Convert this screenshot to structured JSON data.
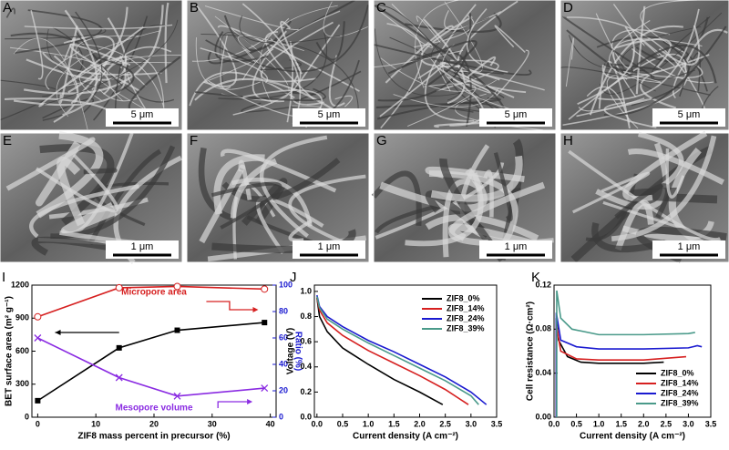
{
  "panels": [
    {
      "letter": "A",
      "scale_bar": "5 μm"
    },
    {
      "letter": "B",
      "scale_bar": "5 μm"
    },
    {
      "letter": "C",
      "scale_bar": "5 μm"
    },
    {
      "letter": "D",
      "scale_bar": "5 μm"
    },
    {
      "letter": "E",
      "scale_bar": "1 μm"
    },
    {
      "letter": "F",
      "scale_bar": "1 μm"
    },
    {
      "letter": "G",
      "scale_bar": "1 μm"
    },
    {
      "letter": "H",
      "scale_bar": "1 μm"
    }
  ],
  "chart_data": [
    {
      "type": "line",
      "panel": "I",
      "xlabel": "ZIF8 mass percent in precursor (%)",
      "ylabel": "BET surface area (m² g⁻¹)",
      "y2label": "Ratio (%)",
      "y2_color": "#1a1ad0",
      "annotations": [
        "Micropore area",
        "Mesopore volume"
      ],
      "x": [
        0,
        14,
        24,
        39
      ],
      "xlim": [
        -1,
        41
      ],
      "xticks": [
        0,
        10,
        20,
        30,
        40
      ],
      "ylim": [
        0,
        1200
      ],
      "yticks": [
        0,
        300,
        600,
        900,
        1200
      ],
      "y2lim": [
        0,
        100
      ],
      "y2ticks": [
        0,
        20,
        40,
        60,
        80,
        100
      ],
      "series": [
        {
          "color": "#000000",
          "marker": "square",
          "values": [
            150,
            630,
            790,
            860
          ]
        },
        {
          "color": "#d62020",
          "marker": "circle",
          "axis": "y2",
          "values": [
            76,
            98,
            99,
            97
          ]
        },
        {
          "color": "#8a2be2",
          "marker": "cross",
          "axis": "y2",
          "values": [
            60,
            30,
            16,
            22
          ]
        }
      ]
    },
    {
      "type": "line",
      "panel": "J",
      "xlabel": "Current density (A cm⁻²)",
      "ylabel": "Voltage (V)",
      "legend": "upper right",
      "xlim": [
        -0.05,
        3.5
      ],
      "xticks": [
        {
          "value": 0,
          "label": "0.0"
        },
        0.5,
        {
          "value": 1,
          "label": "1.0"
        },
        1.5,
        {
          "value": 2,
          "label": "2.0"
        },
        2.5,
        {
          "value": 3,
          "label": "3.0"
        },
        3.5
      ],
      "ylim": [
        0,
        1.05
      ],
      "yticks": [
        {
          "value": 0,
          "label": "0.0"
        },
        0.2,
        0.4,
        0.6,
        0.8,
        {
          "value": 1,
          "label": "1.0"
        }
      ],
      "series": [
        {
          "name": "ZIF8_0%",
          "color": "#000000",
          "x": [
            0,
            0.05,
            0.2,
            0.5,
            1,
            1.5,
            2,
            2.45
          ],
          "values": [
            0.95,
            0.8,
            0.68,
            0.55,
            0.42,
            0.3,
            0.2,
            0.1
          ]
        },
        {
          "name": "ZIF8_14%",
          "color": "#d62020",
          "x": [
            0,
            0.05,
            0.2,
            0.5,
            1,
            1.5,
            2,
            2.5,
            2.95
          ],
          "values": [
            0.95,
            0.85,
            0.75,
            0.65,
            0.53,
            0.43,
            0.33,
            0.22,
            0.1
          ]
        },
        {
          "name": "ZIF8_24%",
          "color": "#1a1ad0",
          "x": [
            0,
            0.05,
            0.2,
            0.5,
            1,
            1.5,
            2,
            2.5,
            3,
            3.3
          ],
          "values": [
            0.97,
            0.88,
            0.8,
            0.72,
            0.61,
            0.52,
            0.42,
            0.32,
            0.2,
            0.1
          ]
        },
        {
          "name": "ZIF8_39%",
          "color": "#4a9a8a",
          "x": [
            0,
            0.05,
            0.2,
            0.5,
            1,
            1.5,
            2,
            2.5,
            3,
            3.15
          ],
          "values": [
            0.96,
            0.87,
            0.78,
            0.7,
            0.59,
            0.49,
            0.39,
            0.29,
            0.17,
            0.1
          ]
        }
      ]
    },
    {
      "type": "line",
      "panel": "K",
      "xlabel": "Current density (A cm⁻²)",
      "ylabel": "Cell resistance (Ω·cm²)",
      "legend": "lower right",
      "xlim": [
        0,
        3.5
      ],
      "xticks": [
        {
          "value": 0,
          "label": "0.0"
        },
        0.5,
        {
          "value": 1,
          "label": "1.0"
        },
        1.5,
        {
          "value": 2,
          "label": "2.0"
        },
        2.5,
        {
          "value": 3,
          "label": "3.0"
        },
        3.5
      ],
      "ylim": [
        0,
        0.12
      ],
      "yticks": [
        {
          "value": 0,
          "label": "0.00"
        },
        0.04,
        0.08,
        {
          "value": 0.12,
          "label": "0.12"
        }
      ],
      "series": [
        {
          "name": "ZIF8_0%",
          "color": "#000000",
          "x": [
            0.05,
            0.05,
            0.1,
            0.3,
            0.6,
            1,
            2,
            2.45
          ],
          "values": [
            0,
            0.09,
            0.07,
            0.055,
            0.05,
            0.049,
            0.049,
            0.05
          ]
        },
        {
          "name": "ZIF8_14%",
          "color": "#d62020",
          "x": [
            0.05,
            0.05,
            0.15,
            0.5,
            1,
            2,
            2.95
          ],
          "values": [
            0,
            0.085,
            0.06,
            0.053,
            0.052,
            0.052,
            0.055
          ]
        },
        {
          "name": "ZIF8_24%",
          "color": "#1a1ad0",
          "x": [
            0.05,
            0.05,
            0.15,
            0.5,
            1,
            2,
            3,
            3.2,
            3.3
          ],
          "values": [
            0,
            0.095,
            0.07,
            0.064,
            0.062,
            0.062,
            0.063,
            0.065,
            0.064
          ]
        },
        {
          "name": "ZIF8_39%",
          "color": "#4a9a8a",
          "x": [
            0.06,
            0.06,
            0.15,
            0.4,
            1,
            2,
            3,
            3.15
          ],
          "values": [
            0,
            0.115,
            0.09,
            0.08,
            0.075,
            0.075,
            0.076,
            0.077
          ]
        }
      ]
    }
  ]
}
